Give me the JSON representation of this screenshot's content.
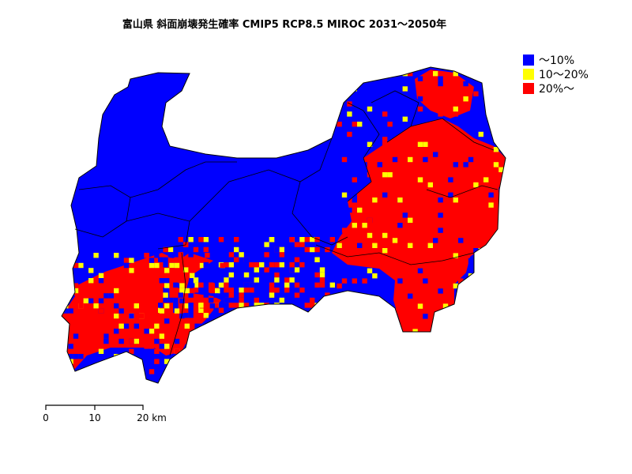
{
  "title": "富山県 斜面崩壊発生確率 CMIP5 RCP8.5 MIROC 2031～2050年",
  "legend": [
    {
      "label": "～10%",
      "color": "#0000ff"
    },
    {
      "label": "10～20%",
      "color": "#ffff00"
    },
    {
      "label": "20%～",
      "color": "#ff0000"
    }
  ],
  "scale_bar": {
    "ticks": [
      "0",
      "10",
      "20 km"
    ]
  }
}
